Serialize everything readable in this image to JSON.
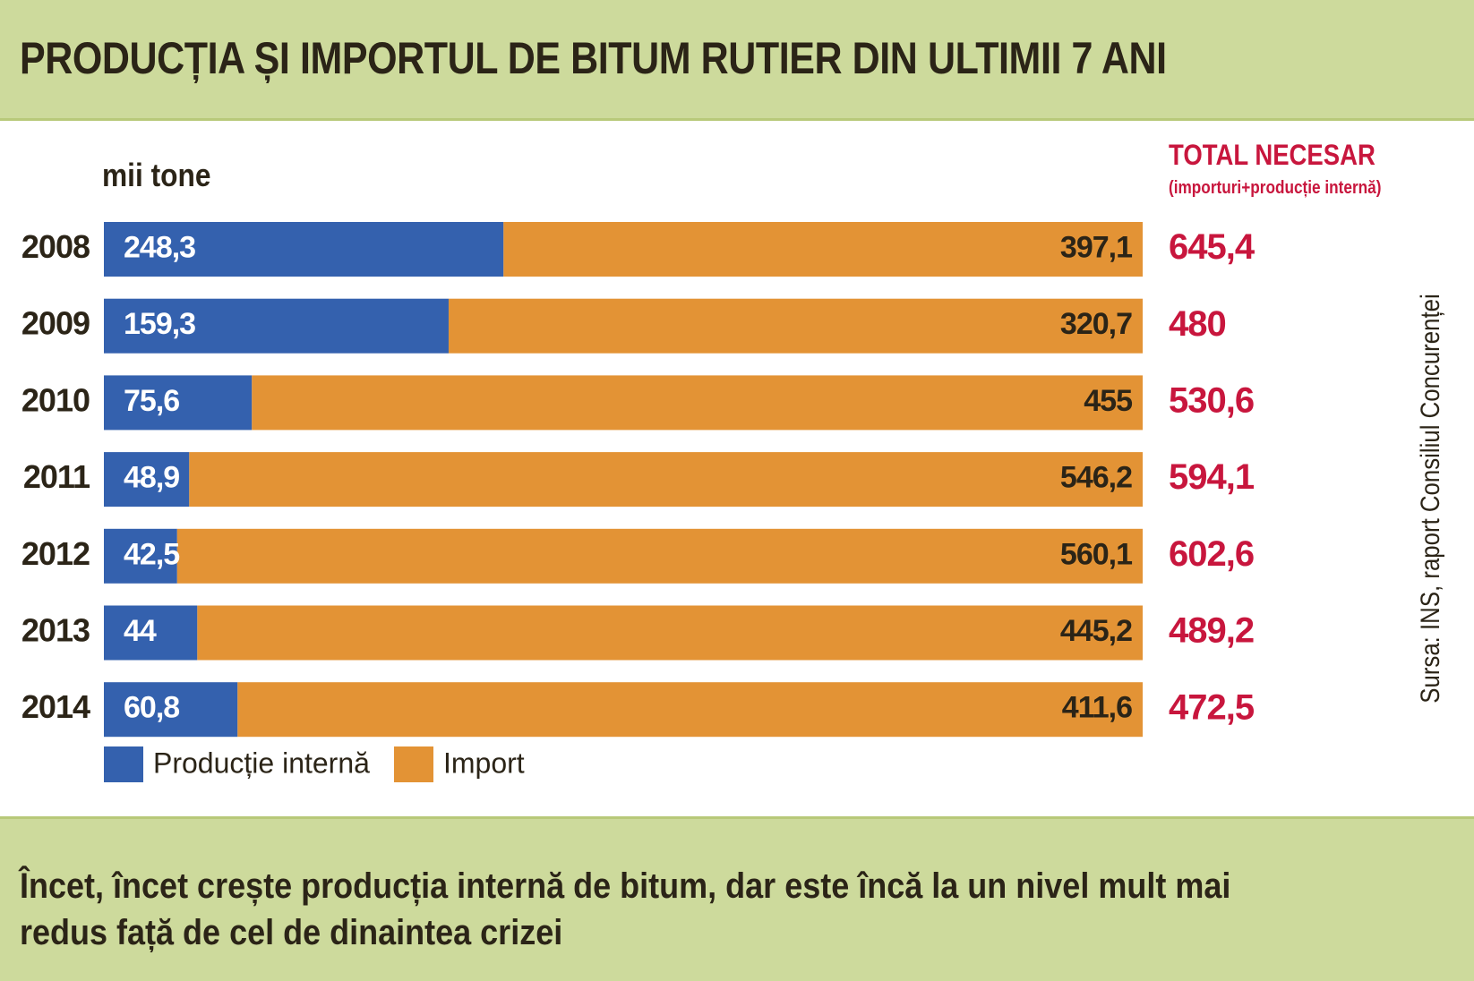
{
  "title": "PRODUCȚIA ȘI IMPORTUL DE BITUM RUTIER DIN ULTIMII 7 ANI",
  "caption": "Încet, încet crește producția internă de bitum, dar este încă la un nivel mult mai redus față de cel de dinaintea crizei",
  "source": "Sursa: INS, raport Consiliul Concurenței",
  "colors": {
    "production": "#3461ae",
    "import": "#e39335",
    "total": "#c8163d",
    "background": "#cdda9c"
  },
  "chart_data": {
    "type": "bar",
    "orientation": "horizontal",
    "stacked": true,
    "ylabel": "mii tone",
    "categories": [
      "2008",
      "2009",
      "2010",
      "2011",
      "2012",
      "2013",
      "2014"
    ],
    "series": [
      {
        "name": "Producție internă",
        "values": [
          248.3,
          159.3,
          75.6,
          48.9,
          42.5,
          44,
          60.8
        ],
        "labels": [
          "248,3",
          "159,3",
          "75,6",
          "48,9",
          "42,5",
          "44",
          "60,8"
        ]
      },
      {
        "name": "Import",
        "values": [
          397.1,
          320.7,
          455,
          546.2,
          560.1,
          445.2,
          411.6
        ],
        "labels": [
          "397,1",
          "320,7",
          "455",
          "546,2",
          "560,1",
          "445,2",
          "411,6"
        ]
      }
    ],
    "totals": {
      "title": "TOTAL NECESAR",
      "subtitle": "(importuri+producție internă)",
      "values": [
        645.4,
        480,
        530.6,
        594.1,
        602.6,
        489.2,
        472.5
      ],
      "labels": [
        "645,4",
        "480",
        "530,6",
        "594,1",
        "602,6",
        "489,2",
        "472,5"
      ]
    },
    "legend": {
      "placement": "bottom-left"
    },
    "grid": false,
    "note": "each bar is shown at full width (100% of the total)"
  }
}
